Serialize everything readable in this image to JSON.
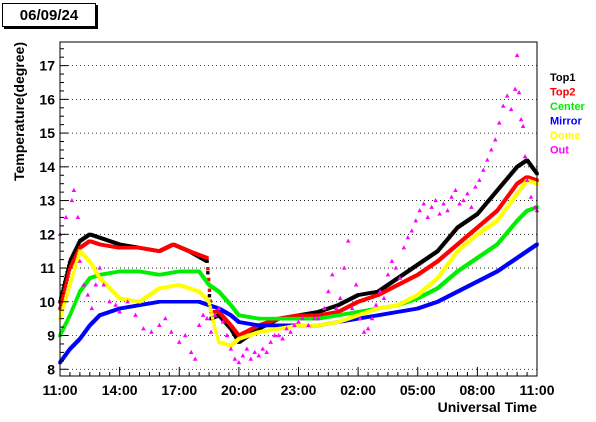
{
  "header": {
    "date": "06/09/24"
  },
  "chart_data": {
    "type": "scatter",
    "title": "",
    "xlabel": "Universal Time",
    "ylabel": "Temperature(degree)",
    "xlim": [
      0,
      24
    ],
    "ylim": [
      7.8,
      17.7
    ],
    "x_ticks": [
      {
        "x": 0,
        "label": "11:00"
      },
      {
        "x": 3,
        "label": "14:00"
      },
      {
        "x": 6,
        "label": "17:00"
      },
      {
        "x": 9,
        "label": "20:00"
      },
      {
        "x": 12,
        "label": "23:00"
      },
      {
        "x": 15,
        "label": "02:00"
      },
      {
        "x": 18,
        "label": "05:00"
      },
      {
        "x": 21,
        "label": "08:00"
      },
      {
        "x": 24,
        "label": "11:00"
      }
    ],
    "y_ticks": [
      {
        "y": 8,
        "label": "8"
      },
      {
        "y": 9,
        "label": "9"
      },
      {
        "y": 10,
        "label": "10"
      },
      {
        "y": 11,
        "label": "11"
      },
      {
        "y": 12,
        "label": "12"
      },
      {
        "y": 13,
        "label": "13"
      },
      {
        "y": 14,
        "label": "14"
      },
      {
        "y": 15,
        "label": "15"
      },
      {
        "y": 16,
        "label": "16"
      },
      {
        "y": 17,
        "label": "17"
      }
    ],
    "grid": "horizontal dotted",
    "legend_position": "right",
    "series": [
      {
        "name": "Top1",
        "color": "#000000",
        "style": "points",
        "points": [
          [
            0,
            10
          ],
          [
            0.5,
            11.2
          ],
          [
            1,
            11.8
          ],
          [
            1.5,
            12
          ],
          [
            2,
            11.9
          ],
          [
            3,
            11.7
          ],
          [
            4,
            11.6
          ],
          [
            5,
            11.5
          ],
          [
            5.7,
            11.7
          ],
          [
            6.5,
            11.5
          ],
          [
            7.4,
            11.2
          ],
          [
            7.6,
            9.5
          ],
          [
            8,
            9.6
          ],
          [
            8.6,
            9.2
          ],
          [
            9,
            8.8
          ],
          [
            10,
            9.2
          ],
          [
            11,
            9.5
          ],
          [
            12,
            9.6
          ],
          [
            13,
            9.7
          ],
          [
            14,
            9.9
          ],
          [
            15,
            10.2
          ],
          [
            16,
            10.3
          ],
          [
            17,
            10.7
          ],
          [
            18,
            11.1
          ],
          [
            19,
            11.5
          ],
          [
            20,
            12.2
          ],
          [
            21,
            12.6
          ],
          [
            22,
            13.3
          ],
          [
            23,
            14
          ],
          [
            23.5,
            14.2
          ],
          [
            24,
            13.8
          ]
        ]
      },
      {
        "name": "Top2",
        "color": "#ff0000",
        "style": "points",
        "points": [
          [
            0,
            9.8
          ],
          [
            0.5,
            11
          ],
          [
            1,
            11.6
          ],
          [
            1.5,
            11.8
          ],
          [
            2,
            11.7
          ],
          [
            3,
            11.6
          ],
          [
            4,
            11.6
          ],
          [
            5,
            11.5
          ],
          [
            5.7,
            11.7
          ],
          [
            6.5,
            11.5
          ],
          [
            7.4,
            11.3
          ],
          [
            7.6,
            9.7
          ],
          [
            8,
            9.7
          ],
          [
            8.6,
            9.3
          ],
          [
            9,
            9
          ],
          [
            10,
            9.3
          ],
          [
            11,
            9.5
          ],
          [
            12,
            9.6
          ],
          [
            13,
            9.6
          ],
          [
            14,
            9.7
          ],
          [
            15,
            10
          ],
          [
            16,
            10.2
          ],
          [
            17,
            10.5
          ],
          [
            18,
            10.8
          ],
          [
            19,
            11.2
          ],
          [
            20,
            11.7
          ],
          [
            21,
            12.2
          ],
          [
            22,
            12.7
          ],
          [
            23,
            13.5
          ],
          [
            23.5,
            13.7
          ],
          [
            24,
            13.6
          ]
        ]
      },
      {
        "name": "Center",
        "color": "#00ee00",
        "style": "points",
        "points": [
          [
            0,
            9
          ],
          [
            0.5,
            9.6
          ],
          [
            1,
            10.3
          ],
          [
            1.5,
            10.7
          ],
          [
            2,
            10.8
          ],
          [
            3,
            10.9
          ],
          [
            4,
            10.9
          ],
          [
            5,
            10.8
          ],
          [
            6,
            10.9
          ],
          [
            7,
            10.9
          ],
          [
            7.5,
            10.5
          ],
          [
            8,
            10.3
          ],
          [
            8.6,
            9.9
          ],
          [
            9,
            9.6
          ],
          [
            10,
            9.5
          ],
          [
            11,
            9.5
          ],
          [
            12,
            9.5
          ],
          [
            13,
            9.5
          ],
          [
            14,
            9.6
          ],
          [
            15,
            9.7
          ],
          [
            16,
            9.8
          ],
          [
            17,
            9.9
          ],
          [
            18,
            10.1
          ],
          [
            19,
            10.4
          ],
          [
            20,
            10.9
          ],
          [
            21,
            11.3
          ],
          [
            22,
            11.7
          ],
          [
            23,
            12.4
          ],
          [
            23.5,
            12.7
          ],
          [
            24,
            12.8
          ]
        ]
      },
      {
        "name": "Mirror",
        "color": "#0000ff",
        "style": "points",
        "points": [
          [
            0,
            8.2
          ],
          [
            0.5,
            8.6
          ],
          [
            1,
            8.9
          ],
          [
            1.5,
            9.3
          ],
          [
            2,
            9.6
          ],
          [
            3,
            9.8
          ],
          [
            4,
            9.9
          ],
          [
            5,
            10
          ],
          [
            6,
            10
          ],
          [
            7,
            10
          ],
          [
            7.5,
            9.9
          ],
          [
            8,
            9.8
          ],
          [
            8.6,
            9.6
          ],
          [
            9,
            9.4
          ],
          [
            10,
            9.3
          ],
          [
            11,
            9.3
          ],
          [
            12,
            9.3
          ],
          [
            13,
            9.3
          ],
          [
            14,
            9.4
          ],
          [
            15,
            9.5
          ],
          [
            16,
            9.6
          ],
          [
            17,
            9.7
          ],
          [
            18,
            9.8
          ],
          [
            19,
            10
          ],
          [
            20,
            10.3
          ],
          [
            21,
            10.6
          ],
          [
            22,
            10.9
          ],
          [
            23,
            11.3
          ],
          [
            23.5,
            11.5
          ],
          [
            24,
            11.7
          ]
        ]
      },
      {
        "name": "Dome",
        "color": "#ffff00",
        "style": "points",
        "points": [
          [
            0,
            9.5
          ],
          [
            0.5,
            10.5
          ],
          [
            1,
            11.5
          ],
          [
            1.5,
            11.2
          ],
          [
            2,
            10.7
          ],
          [
            3,
            10.1
          ],
          [
            4,
            10
          ],
          [
            5,
            10.4
          ],
          [
            6,
            10.5
          ],
          [
            7,
            10.3
          ],
          [
            7.5,
            10
          ],
          [
            7.8,
            9.2
          ],
          [
            8,
            8.8
          ],
          [
            8.6,
            8.7
          ],
          [
            9,
            8.9
          ],
          [
            10,
            9.1
          ],
          [
            11,
            9.2
          ],
          [
            12,
            9.3
          ],
          [
            13,
            9.3
          ],
          [
            14,
            9.4
          ],
          [
            15,
            9.6
          ],
          [
            16,
            9.8
          ],
          [
            17,
            9.9
          ],
          [
            18,
            10.2
          ],
          [
            19,
            10.7
          ],
          [
            20,
            11.5
          ],
          [
            21,
            12
          ],
          [
            22,
            12.4
          ],
          [
            23,
            13.2
          ],
          [
            23.5,
            13.6
          ],
          [
            24,
            13.5
          ]
        ]
      },
      {
        "name": "Out",
        "color": "#ff00ff",
        "style": "scatter",
        "points": [
          [
            0,
            12
          ],
          [
            0.3,
            12.5
          ],
          [
            0.6,
            13
          ],
          [
            0.7,
            13.3
          ],
          [
            0.9,
            12.5
          ],
          [
            1,
            11.2
          ],
          [
            1.2,
            10.5
          ],
          [
            1.4,
            10.2
          ],
          [
            1.6,
            9.8
          ],
          [
            1.8,
            10.5
          ],
          [
            2,
            11
          ],
          [
            2.2,
            10.5
          ],
          [
            2.5,
            10
          ],
          [
            2.8,
            9.9
          ],
          [
            3,
            9.7
          ],
          [
            3.4,
            10
          ],
          [
            3.8,
            9.6
          ],
          [
            4.2,
            9.2
          ],
          [
            4.6,
            9.1
          ],
          [
            5,
            9.3
          ],
          [
            5.3,
            9.5
          ],
          [
            5.6,
            9.1
          ],
          [
            6,
            8.8
          ],
          [
            6.3,
            9
          ],
          [
            6.6,
            8.5
          ],
          [
            6.8,
            8.3
          ],
          [
            7,
            9.3
          ],
          [
            7.2,
            9.6
          ],
          [
            7.4,
            9.5
          ],
          [
            7.6,
            9.1
          ],
          [
            7.8,
            9.6
          ],
          [
            8,
            9.8
          ],
          [
            8.2,
            9.4
          ],
          [
            8.4,
            9
          ],
          [
            8.6,
            8.6
          ],
          [
            8.8,
            8.3
          ],
          [
            9,
            8.2
          ],
          [
            9.2,
            8.4
          ],
          [
            9.4,
            8.6
          ],
          [
            9.6,
            8.3
          ],
          [
            9.8,
            8.5
          ],
          [
            10,
            8.4
          ],
          [
            10.2,
            8.6
          ],
          [
            10.4,
            8.5
          ],
          [
            10.6,
            8.8
          ],
          [
            10.8,
            9
          ],
          [
            11,
            9
          ],
          [
            11.2,
            8.9
          ],
          [
            11.4,
            9.2
          ],
          [
            11.6,
            9.1
          ],
          [
            11.8,
            9.3
          ],
          [
            12,
            9.4
          ],
          [
            12.2,
            9.5
          ],
          [
            12.5,
            9.3
          ],
          [
            12.8,
            9.5
          ],
          [
            13,
            9.5
          ],
          [
            13.3,
            9.8
          ],
          [
            13.5,
            10.3
          ],
          [
            13.7,
            10.8
          ],
          [
            13.9,
            9.8
          ],
          [
            14.1,
            10.1
          ],
          [
            14.3,
            11
          ],
          [
            14.5,
            11.8
          ],
          [
            14.7,
            9.8
          ],
          [
            14.9,
            10.5
          ],
          [
            15.1,
            9.5
          ],
          [
            15.3,
            9.1
          ],
          [
            15.5,
            9.2
          ],
          [
            15.7,
            9.5
          ],
          [
            15.9,
            9.9
          ],
          [
            16.1,
            10.3
          ],
          [
            16.3,
            10.1
          ],
          [
            16.5,
            10.8
          ],
          [
            16.7,
            11.2
          ],
          [
            16.9,
            11
          ],
          [
            17.1,
            10.7
          ],
          [
            17.3,
            11.6
          ],
          [
            17.5,
            11.9
          ],
          [
            17.7,
            12.1
          ],
          [
            17.9,
            12.4
          ],
          [
            18.1,
            12.7
          ],
          [
            18.3,
            12.9
          ],
          [
            18.5,
            12.5
          ],
          [
            18.7,
            12.8
          ],
          [
            18.9,
            13
          ],
          [
            19.1,
            12.6
          ],
          [
            19.3,
            12.9
          ],
          [
            19.5,
            12.7
          ],
          [
            19.7,
            13.1
          ],
          [
            19.9,
            13.3
          ],
          [
            20.1,
            12.9
          ],
          [
            20.3,
            13
          ],
          [
            20.5,
            13.2
          ],
          [
            20.7,
            12.8
          ],
          [
            20.9,
            13.4
          ],
          [
            21.1,
            13.6
          ],
          [
            21.3,
            13.9
          ],
          [
            21.5,
            14.2
          ],
          [
            21.7,
            14.5
          ],
          [
            21.9,
            14.8
          ],
          [
            22.1,
            15.3
          ],
          [
            22.3,
            15.8
          ],
          [
            22.5,
            16.1
          ],
          [
            22.7,
            15.7
          ],
          [
            22.9,
            16.3
          ],
          [
            23.0,
            17.3
          ],
          [
            23.1,
            16.2
          ],
          [
            23.2,
            15.4
          ],
          [
            23.3,
            15.2
          ],
          [
            23.4,
            14.3
          ],
          [
            23.5,
            13.6
          ],
          [
            23.7,
            13.1
          ],
          [
            23.9,
            12.8
          ],
          [
            24,
            12.7
          ]
        ]
      }
    ]
  }
}
